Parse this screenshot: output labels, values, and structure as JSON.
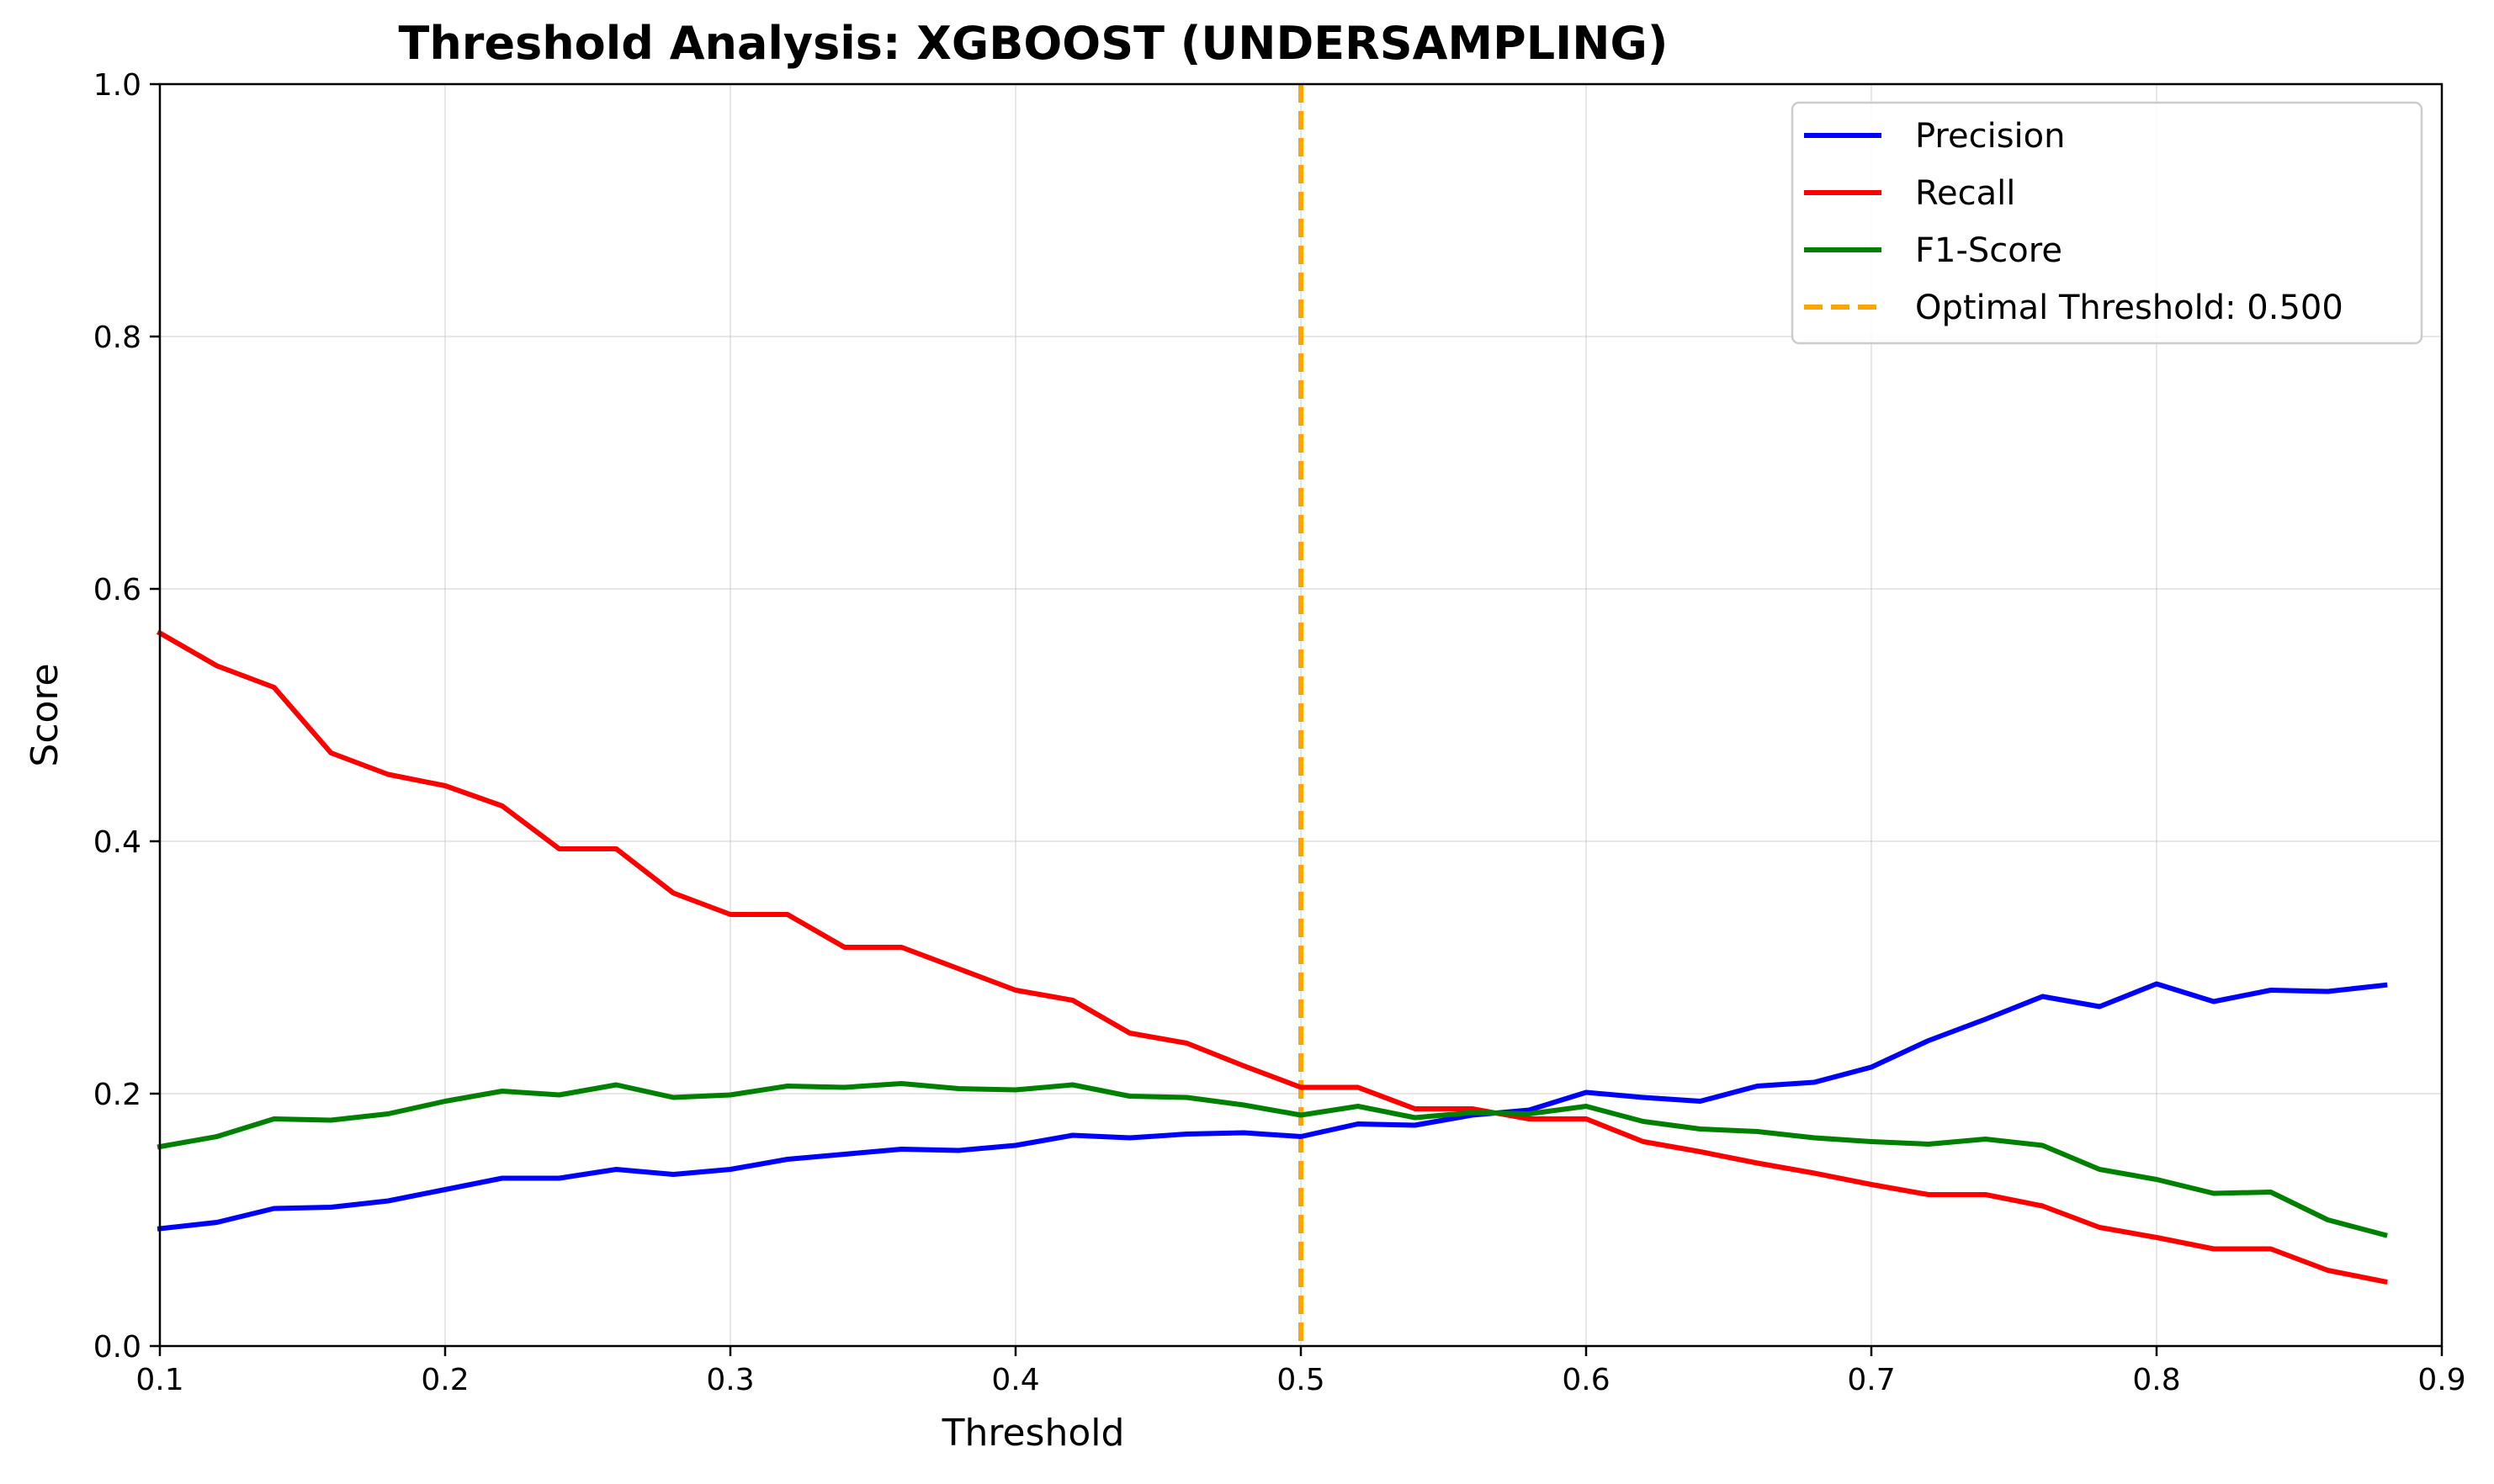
{
  "chart_data": {
    "type": "line",
    "title": "Threshold Analysis: XGBOOST (UNDERSAMPLING)",
    "xlabel": "Threshold",
    "ylabel": "Score",
    "xlim": [
      0.1,
      0.9
    ],
    "ylim": [
      0.0,
      1.0
    ],
    "xticks": [
      "0.1",
      "0.2",
      "0.3",
      "0.4",
      "0.5",
      "0.6",
      "0.7",
      "0.8",
      "0.9"
    ],
    "yticks": [
      "0.0",
      "0.2",
      "0.4",
      "0.6",
      "0.8",
      "1.0"
    ],
    "grid": true,
    "legend_position": "top-right",
    "x": [
      0.1,
      0.12,
      0.14,
      0.16,
      0.18,
      0.2,
      0.22,
      0.24,
      0.26,
      0.28,
      0.3,
      0.32,
      0.34,
      0.36,
      0.38,
      0.4,
      0.42,
      0.44,
      0.46,
      0.48,
      0.5,
      0.52,
      0.54,
      0.56,
      0.58,
      0.6,
      0.62,
      0.64,
      0.66,
      0.68,
      0.7,
      0.72,
      0.74,
      0.76,
      0.78,
      0.8,
      0.82,
      0.84,
      0.86,
      0.88
    ],
    "series": [
      {
        "name": "Precision",
        "color": "#0000ff",
        "values": [
          0.093,
          0.098,
          0.109,
          0.11,
          0.115,
          0.124,
          0.133,
          0.133,
          0.14,
          0.136,
          0.14,
          0.148,
          0.152,
          0.156,
          0.155,
          0.159,
          0.167,
          0.165,
          0.168,
          0.169,
          0.166,
          0.176,
          0.175,
          0.183,
          0.187,
          0.201,
          0.197,
          0.194,
          0.206,
          0.209,
          0.221,
          0.242,
          0.259,
          0.277,
          0.269,
          0.287,
          0.273,
          0.282,
          0.281,
          0.286
        ]
      },
      {
        "name": "Recall",
        "color": "#ff0000",
        "values": [
          0.565,
          0.539,
          0.522,
          0.47,
          0.453,
          0.444,
          0.428,
          0.394,
          0.394,
          0.359,
          0.342,
          0.342,
          0.316,
          0.316,
          0.299,
          0.282,
          0.274,
          0.248,
          0.24,
          0.222,
          0.205,
          0.205,
          0.188,
          0.188,
          0.18,
          0.18,
          0.162,
          0.154,
          0.145,
          0.137,
          0.128,
          0.12,
          0.12,
          0.111,
          0.094,
          0.086,
          0.077,
          0.077,
          0.06,
          0.051
        ]
      },
      {
        "name": "F1-Score",
        "color": "#008000",
        "values": [
          0.158,
          0.166,
          0.18,
          0.179,
          0.184,
          0.194,
          0.202,
          0.199,
          0.207,
          0.197,
          0.199,
          0.206,
          0.205,
          0.208,
          0.204,
          0.203,
          0.207,
          0.198,
          0.197,
          0.191,
          0.183,
          0.19,
          0.181,
          0.185,
          0.184,
          0.19,
          0.178,
          0.172,
          0.17,
          0.165,
          0.162,
          0.16,
          0.164,
          0.159,
          0.14,
          0.132,
          0.121,
          0.122,
          0.1,
          0.088
        ]
      }
    ],
    "vline": {
      "name": "Optimal Threshold: 0.500",
      "x": 0.5,
      "color": "#ffa500",
      "style": "dashed"
    }
  }
}
